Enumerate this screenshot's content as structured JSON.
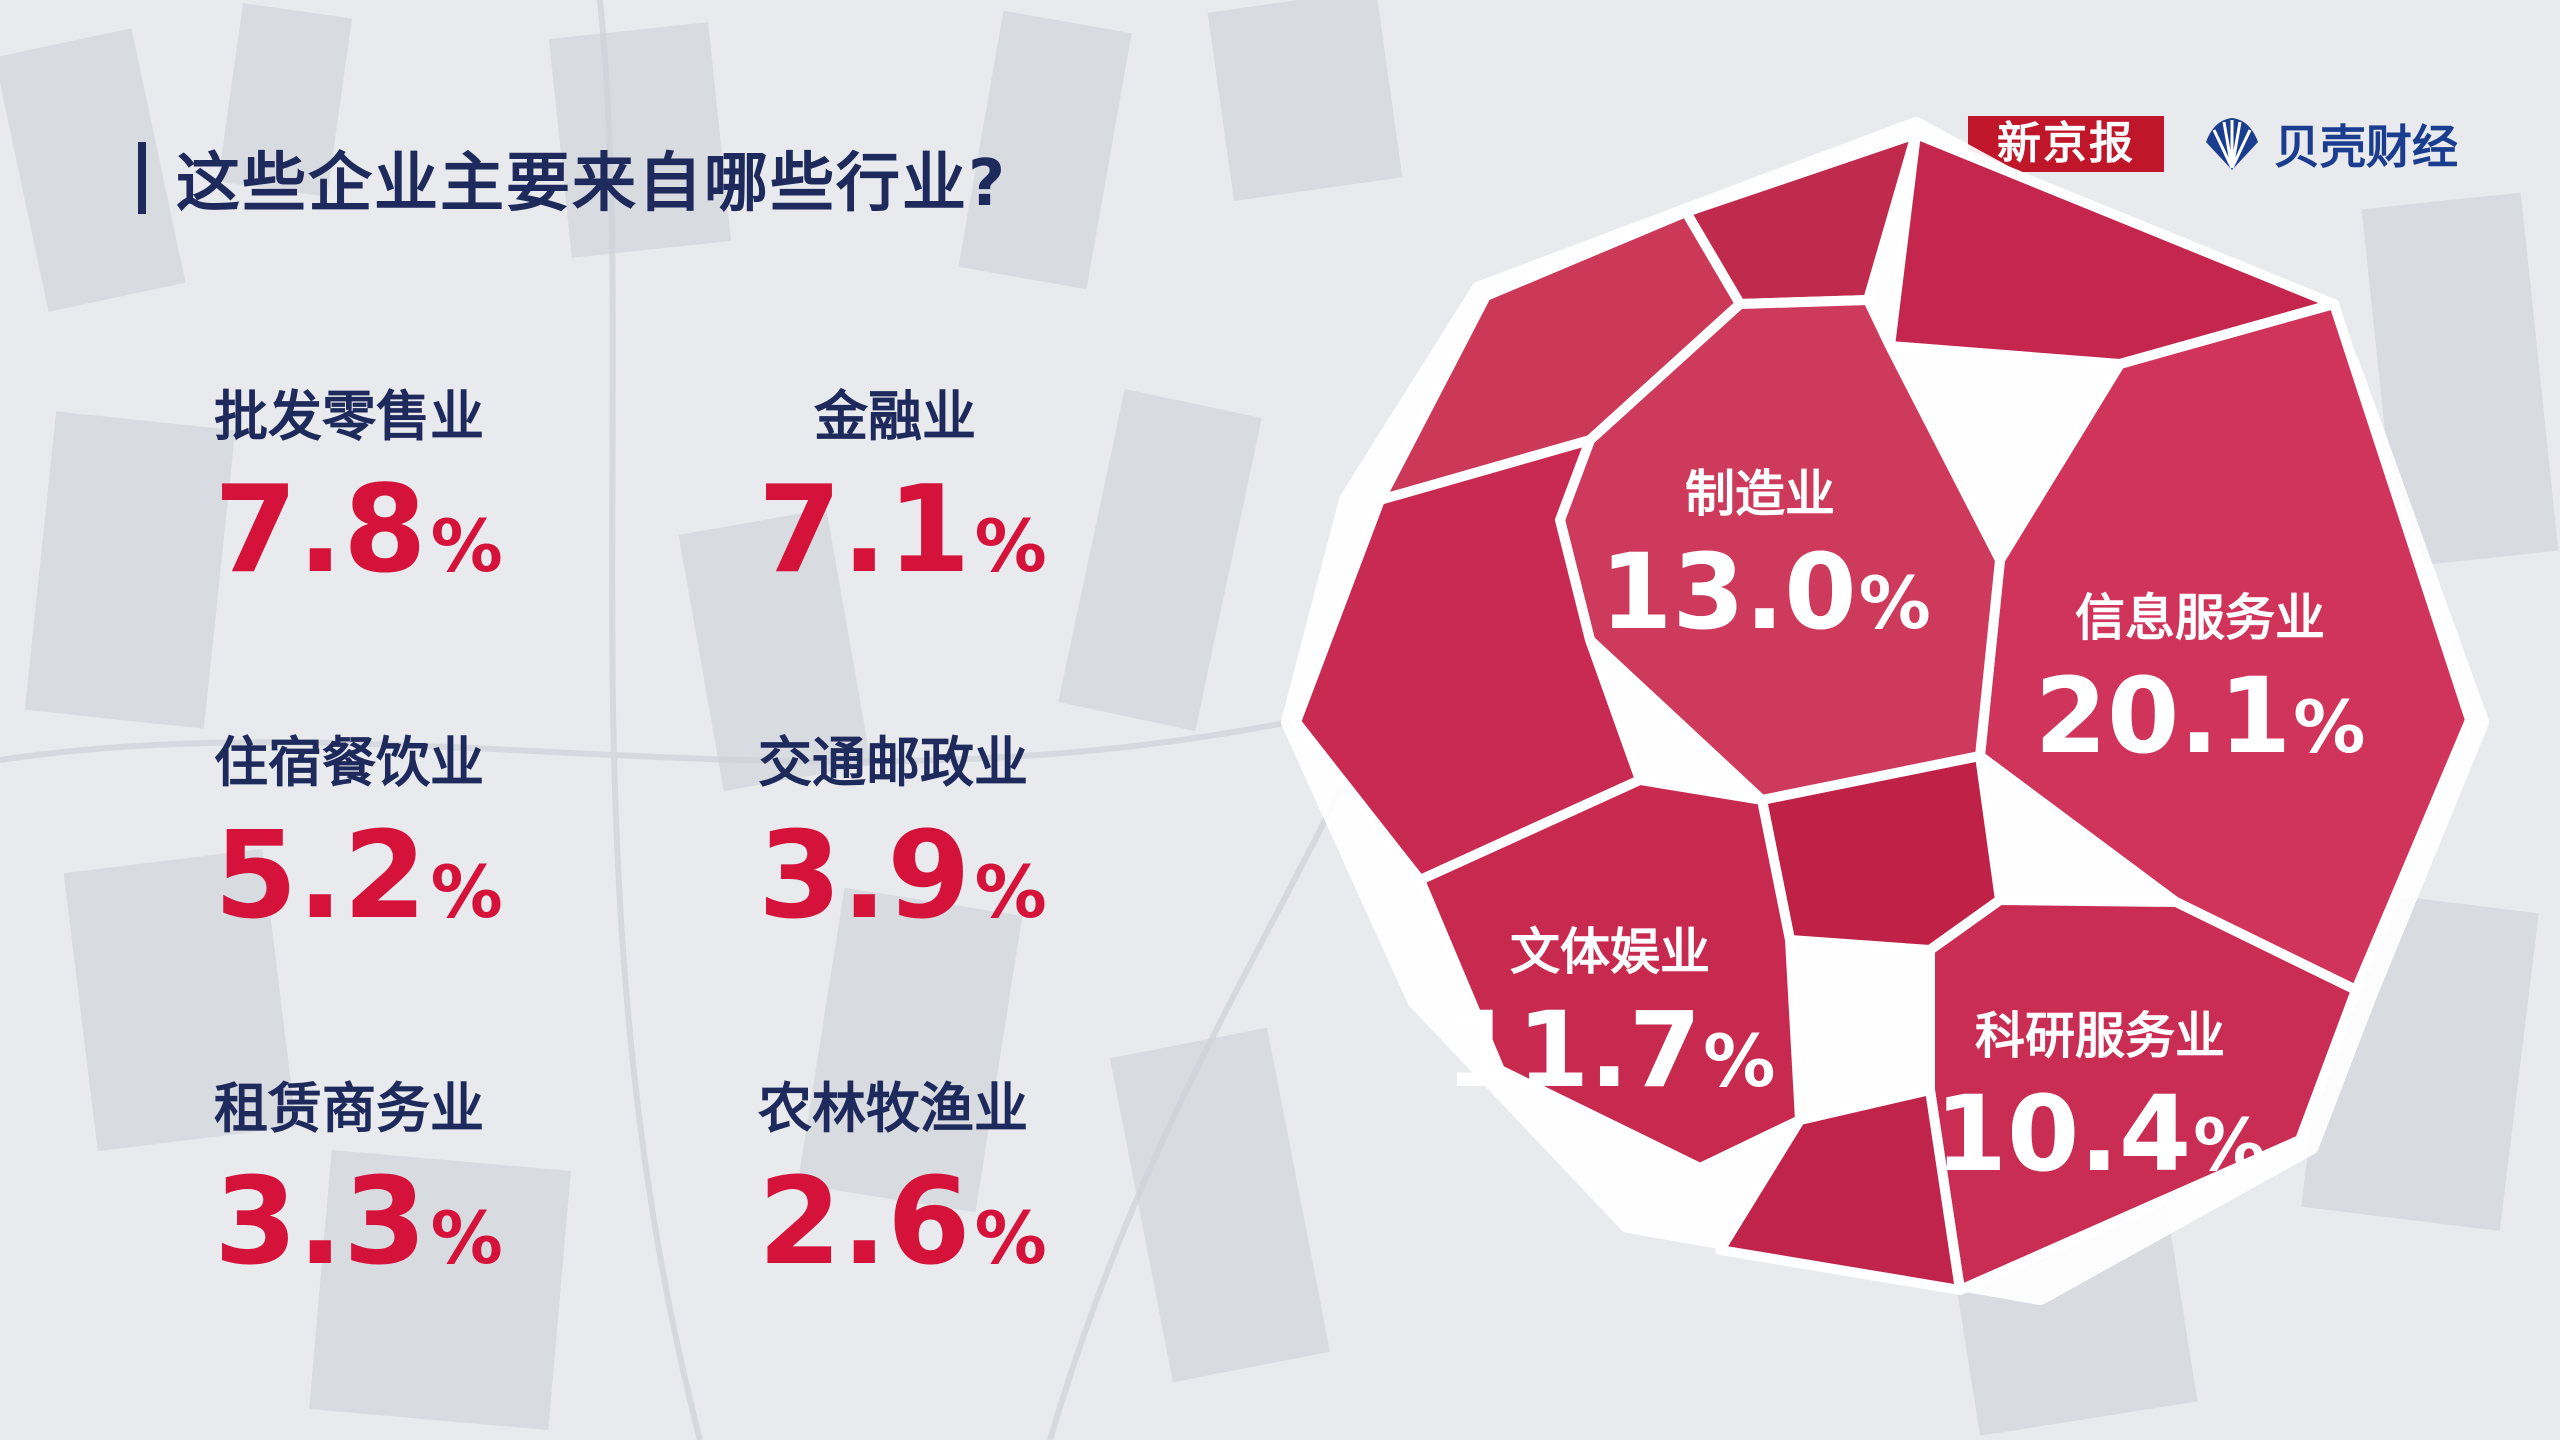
{
  "title": "这些企业主要来自哪些行业?",
  "logos": {
    "xinjingbao": "新京报",
    "beike": "贝壳财经"
  },
  "colors": {
    "accent": "#d4123a",
    "cell": "#c8244f",
    "navy": "#1f2a5c"
  },
  "chart_data": {
    "type": "table",
    "title": "这些企业主要来自哪些行业?",
    "unit": "%",
    "categories": [
      "信息服务业",
      "制造业",
      "文体娱业",
      "科研服务业",
      "批发零售业",
      "金融业",
      "住宿餐饮业",
      "交通邮政业",
      "租赁商务业",
      "农林牧渔业"
    ],
    "values": [
      20.1,
      13.0,
      11.7,
      10.4,
      7.8,
      7.1,
      5.2,
      3.9,
      3.3,
      2.6
    ],
    "highlighted": [
      {
        "category": "制造业",
        "value": "13.0",
        "unit": "%"
      },
      {
        "category": "信息服务业",
        "value": "20.1",
        "unit": "%"
      },
      {
        "category": "文体娱业",
        "value": "11.7",
        "unit": "%"
      },
      {
        "category": "科研服务业",
        "value": "10.4",
        "unit": "%"
      }
    ],
    "list": [
      {
        "category": "批发零售业",
        "value": "7.8",
        "unit": "%"
      },
      {
        "category": "金融业",
        "value": "7.1",
        "unit": "%"
      },
      {
        "category": "住宿餐饮业",
        "value": "5.2",
        "unit": "%"
      },
      {
        "category": "交通邮政业",
        "value": "3.9",
        "unit": "%"
      },
      {
        "category": "租赁商务业",
        "value": "3.3",
        "unit": "%"
      },
      {
        "category": "农林牧渔业",
        "value": "2.6",
        "unit": "%"
      }
    ]
  }
}
